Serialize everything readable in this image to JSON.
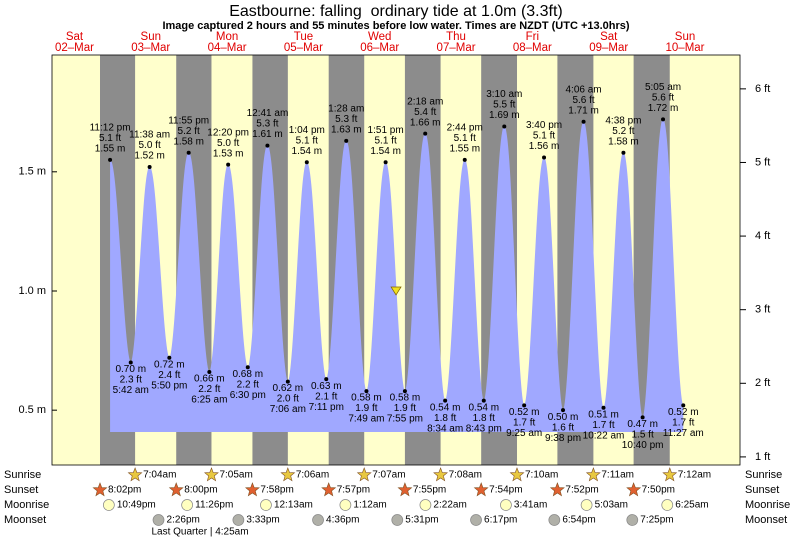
{
  "chart_data": {
    "type": "tide",
    "title": "Eastbourne: falling  ordinary tide at 1.0m (3.3ft)",
    "subtitle": "Image captured 2 hours and 55 minutes before low water. Times are NZDT (UTC +13.0hrs)",
    "days": [
      {
        "weekday": "Sat",
        "date": "02–Mar"
      },
      {
        "weekday": "Sun",
        "date": "03–Mar"
      },
      {
        "weekday": "Mon",
        "date": "04–Mar"
      },
      {
        "weekday": "Tue",
        "date": "05–Mar"
      },
      {
        "weekday": "Wed",
        "date": "06–Mar"
      },
      {
        "weekday": "Thu",
        "date": "07–Mar"
      },
      {
        "weekday": "Fri",
        "date": "08–Mar"
      },
      {
        "weekday": "Sat",
        "date": "09–Mar"
      },
      {
        "weekday": "Sun",
        "date": "10–Mar"
      }
    ],
    "ylim": [
      0.27,
      1.99
    ],
    "yticks": [
      {
        "value": 0.5,
        "label": "0.5 m"
      },
      {
        "value": 1.0,
        "label": "1.0 m"
      },
      {
        "value": 1.5,
        "label": "1.5 m"
      }
    ],
    "y2lim": [
      0.89,
      6.46
    ],
    "y2ticks": [
      {
        "value": 1,
        "label": "1 ft"
      },
      {
        "value": 2,
        "label": "2 ft"
      },
      {
        "value": 3,
        "label": "3 ft"
      },
      {
        "value": 4,
        "label": "4 ft"
      },
      {
        "value": 5,
        "label": "5 ft"
      },
      {
        "value": 6,
        "label": "6 ft"
      }
    ],
    "color": "#a0a8ff",
    "background": "#ffffcc",
    "night_color": "#8c8c8c",
    "marker_value": 1.0,
    "tides": {
      "times": [
        "11:12 pm",
        "5:42 am",
        "11:38 am",
        "5:50 pm",
        "11:55 pm",
        "6:25 am",
        "12:20 pm",
        "6:30 pm",
        "12:41 am",
        "7:06 am",
        "1:04 pm",
        "7:11 pm",
        "1:28 am",
        "7:49 am",
        "1:51 pm",
        "7:55 pm",
        "2:18 am",
        "8:34 am",
        "2:44 pm",
        "8:43 pm",
        "3:10 am",
        "9:25 am",
        "3:40 pm",
        "9:38 pm",
        "4:06 am",
        "10:22 am",
        "4:38 pm",
        "10:40 pm",
        "5:05 am",
        "11:27 am"
      ],
      "values": [
        1.55,
        0.7,
        1.52,
        0.72,
        1.58,
        0.66,
        1.53,
        0.68,
        1.61,
        0.62,
        1.54,
        0.63,
        1.63,
        0.58,
        1.54,
        0.58,
        1.66,
        0.54,
        1.55,
        0.54,
        1.69,
        0.52,
        1.56,
        0.5,
        1.71,
        0.51,
        1.58,
        0.47,
        1.72,
        0.52
      ],
      "value_labels": [
        "1.55 m",
        "0.70 m",
        "1.52 m",
        "0.72 m",
        "1.58 m",
        "0.66 m",
        "1.53 m",
        "0.68 m",
        "1.61 m",
        "0.62 m",
        "1.54 m",
        "0.63 m",
        "1.63 m",
        "0.58 m",
        "1.54 m",
        "0.58 m",
        "1.66 m",
        "0.54 m",
        "1.55 m",
        "0.54 m",
        "1.69 m",
        "0.52 m",
        "1.56 m",
        "0.50 m",
        "1.71 m",
        "0.51 m",
        "1.58 m",
        "0.47 m",
        "1.72 m",
        "0.52 m"
      ],
      "feet_labels": [
        "5.1 ft",
        "2.3 ft",
        "5.0 ft",
        "2.4 ft",
        "5.2 ft",
        "2.2 ft",
        "5.0 ft",
        "2.2 ft",
        "5.3 ft",
        "2.0 ft",
        "5.1 ft",
        "2.1 ft",
        "5.3 ft",
        "1.9 ft",
        "5.1 ft",
        "1.9 ft",
        "5.4 ft",
        "1.8 ft",
        "5.1 ft",
        "1.8 ft",
        "5.5 ft",
        "1.7 ft",
        "5.1 ft",
        "1.6 ft",
        "5.6 ft",
        "1.7 ft",
        "5.2 ft",
        "1.5 ft",
        "5.6 ft",
        "1.7 ft"
      ]
    },
    "sun_moon": {
      "sunrise_label": "Sunrise",
      "sunset_label": "Sunset",
      "moonrise_label": "Moonrise",
      "moonset_label": "Moonset",
      "sunrise": [
        null,
        "7:04am",
        "7:05am",
        "7:06am",
        "7:07am",
        "7:08am",
        "7:10am",
        "7:11am",
        "7:12am"
      ],
      "sunset": [
        "8:02pm",
        "8:00pm",
        "7:58pm",
        "7:57pm",
        "7:55pm",
        "7:54pm",
        "7:52pm",
        "7:50pm",
        null
      ],
      "moonrise": [
        "10:49pm",
        "11:26pm",
        null,
        "12:13am",
        "1:12am",
        "2:22am",
        "3:41am",
        "5:03am",
        "6:25am"
      ],
      "moonset": [
        null,
        "2:26pm",
        "3:33pm",
        "4:36pm",
        "5:31pm",
        "6:17pm",
        "6:54pm",
        "7:25pm",
        null
      ]
    },
    "moon_phase": "Last Quarter | 4:25am"
  }
}
